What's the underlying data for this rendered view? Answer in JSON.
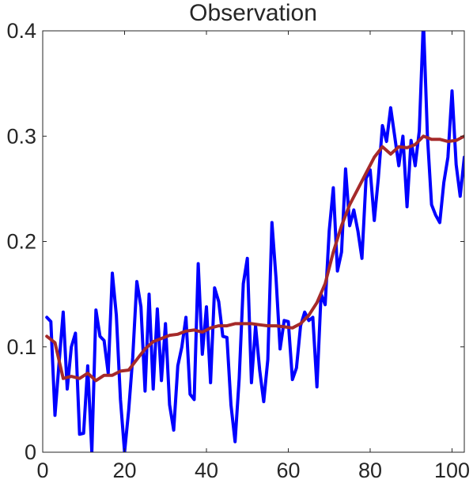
{
  "chart_data": {
    "type": "line",
    "title": "Observation",
    "xlabel": "",
    "ylabel": "",
    "xlim": [
      0,
      103
    ],
    "ylim": [
      0,
      0.4
    ],
    "xticks": [
      0,
      20,
      40,
      60,
      80,
      100
    ],
    "yticks": [
      0,
      0.1,
      0.2,
      0.3,
      0.4
    ],
    "xtick_labels": [
      "0",
      "20",
      "40",
      "60",
      "80",
      "100"
    ],
    "ytick_labels": [
      "0",
      "0.1",
      "0.2",
      "0.3",
      "0.4"
    ],
    "grid": false,
    "legend": "none",
    "series": [
      {
        "color": "#0000ff",
        "x": [
          1,
          2,
          3,
          4,
          5,
          6,
          7,
          8,
          9,
          10,
          11,
          12,
          13,
          14,
          15,
          16,
          17,
          18,
          19,
          20,
          21,
          22,
          23,
          24,
          25,
          26,
          27,
          28,
          29,
          30,
          31,
          32,
          33,
          34,
          35,
          36,
          37,
          38,
          39,
          40,
          41,
          42,
          43,
          44,
          45,
          46,
          47,
          48,
          49,
          50,
          51,
          52,
          53,
          54,
          55,
          56,
          57,
          58,
          59,
          60,
          61,
          62,
          63,
          64,
          65,
          66,
          67,
          68,
          69,
          70,
          71,
          72,
          73,
          74,
          75,
          76,
          77,
          78,
          79,
          80,
          81,
          82,
          83,
          84,
          85,
          86,
          87,
          88,
          89,
          90,
          91,
          92,
          93,
          94,
          95,
          96,
          97,
          98,
          99,
          100,
          101,
          102,
          103
        ],
        "values": [
          0.128,
          0.124,
          0.035,
          0.085,
          0.133,
          0.06,
          0.1,
          0.113,
          0.017,
          0.018,
          0.082,
          0.0,
          0.135,
          0.11,
          0.106,
          0.075,
          0.17,
          0.13,
          0.05,
          0.0,
          0.04,
          0.09,
          0.162,
          0.138,
          0.058,
          0.15,
          0.06,
          0.136,
          0.068,
          0.122,
          0.045,
          0.021,
          0.082,
          0.1,
          0.128,
          0.055,
          0.05,
          0.179,
          0.093,
          0.138,
          0.066,
          0.156,
          0.143,
          0.11,
          0.109,
          0.045,
          0.01,
          0.07,
          0.16,
          0.184,
          0.066,
          0.12,
          0.078,
          0.048,
          0.088,
          0.218,
          0.165,
          0.098,
          0.125,
          0.124,
          0.069,
          0.08,
          0.12,
          0.133,
          0.125,
          0.128,
          0.062,
          0.15,
          0.14,
          0.21,
          0.251,
          0.172,
          0.19,
          0.269,
          0.215,
          0.23,
          0.21,
          0.184,
          0.26,
          0.268,
          0.22,
          0.26,
          0.31,
          0.295,
          0.327,
          0.3,
          0.272,
          0.3,
          0.233,
          0.296,
          0.272,
          0.305,
          0.41,
          0.3,
          0.235,
          0.225,
          0.218,
          0.256,
          0.28,
          0.343,
          0.273,
          0.243,
          0.28
        ]
      },
      {
        "color": "#a52a2a",
        "x": [
          1,
          3,
          5,
          7,
          9,
          11,
          13,
          15,
          17,
          19,
          21,
          23,
          25,
          27,
          29,
          31,
          33,
          35,
          37,
          39,
          41,
          43,
          45,
          47,
          49,
          51,
          53,
          55,
          57,
          59,
          61,
          63,
          65,
          67,
          69,
          71,
          73,
          75,
          77,
          79,
          81,
          83,
          85,
          87,
          89,
          91,
          93,
          95,
          97,
          99,
          101,
          103
        ],
        "values": [
          0.11,
          0.104,
          0.07,
          0.072,
          0.07,
          0.075,
          0.068,
          0.073,
          0.073,
          0.077,
          0.078,
          0.088,
          0.098,
          0.105,
          0.108,
          0.111,
          0.112,
          0.115,
          0.116,
          0.114,
          0.118,
          0.12,
          0.12,
          0.122,
          0.122,
          0.122,
          0.121,
          0.12,
          0.12,
          0.119,
          0.118,
          0.122,
          0.13,
          0.142,
          0.16,
          0.19,
          0.215,
          0.235,
          0.25,
          0.265,
          0.28,
          0.29,
          0.283,
          0.29,
          0.289,
          0.292,
          0.3,
          0.297,
          0.297,
          0.295,
          0.296,
          0.3
        ]
      }
    ]
  }
}
